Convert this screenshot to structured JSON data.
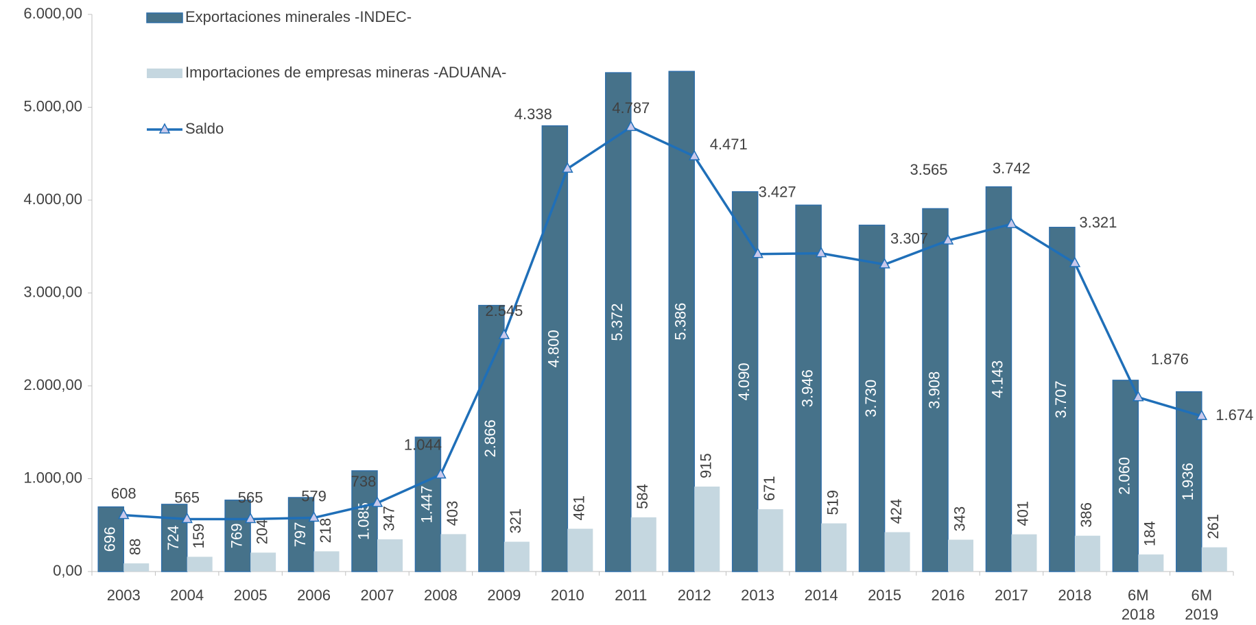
{
  "chart_data": {
    "type": "bar-line",
    "categories": [
      "2003",
      "2004",
      "2005",
      "2006",
      "2007",
      "2008",
      "2009",
      "2010",
      "2011",
      "2012",
      "2013",
      "2014",
      "2015",
      "2016",
      "2017",
      "2018",
      "6M 2018",
      "6M 2019"
    ],
    "series": [
      {
        "name": "Exportaciones minerales -INDEC-",
        "type": "bar",
        "color": "#46728a",
        "values": [
          696,
          724,
          769,
          797,
          1085,
          1447,
          2866,
          4800,
          5372,
          5386,
          4090,
          3946,
          3730,
          3908,
          4143,
          3707,
          2060,
          1936
        ],
        "value_labels": [
          "696",
          "724",
          "769",
          "797",
          "1.085",
          "1.447",
          "2.866",
          "4.800",
          "5.372",
          "5.386",
          "4.090",
          "3.946",
          "3.730",
          "3.908",
          "4.143",
          "3.707",
          "2.060",
          "1.936"
        ]
      },
      {
        "name": "Importaciones de empresas mineras -ADUANA-",
        "type": "bar",
        "color": "#c5d7e0",
        "values": [
          88,
          159,
          204,
          218,
          347,
          403,
          321,
          461,
          584,
          915,
          671,
          519,
          424,
          343,
          401,
          386,
          184,
          261
        ],
        "value_labels": [
          "88",
          "159",
          "204",
          "218",
          "347",
          "403",
          "321",
          "461",
          "584",
          "915",
          "671",
          "519",
          "424",
          "343",
          "401",
          "386",
          "184",
          "261"
        ]
      },
      {
        "name": "Saldo",
        "type": "line",
        "color": "#1f6fb8",
        "values": [
          608,
          565,
          565,
          579,
          738,
          1044,
          2545,
          4338,
          4787,
          4471,
          3419,
          3427,
          3307,
          3565,
          3742,
          3321,
          1876,
          1674
        ],
        "value_labels": [
          "608",
          "565",
          "565",
          "579",
          "738",
          "1.044",
          "2.545",
          "4.338",
          "4.787",
          "4.471",
          null,
          "3.427",
          "3.307",
          "3.565",
          "3.742",
          "3.321",
          "1.876",
          "1.674"
        ]
      }
    ],
    "ylim": [
      0,
      6000
    ],
    "yticks": [
      {
        "value": 0,
        "label": "0,00"
      },
      {
        "value": 1000,
        "label": "1.000,00"
      },
      {
        "value": 2000,
        "label": "2.000,00"
      },
      {
        "value": 3000,
        "label": "3.000,00"
      },
      {
        "value": 4000,
        "label": "4.000,00"
      },
      {
        "value": 5000,
        "label": "5.000,00"
      },
      {
        "value": 6000,
        "label": "6.000,00"
      }
    ],
    "grid": false,
    "legend": "top-left"
  }
}
